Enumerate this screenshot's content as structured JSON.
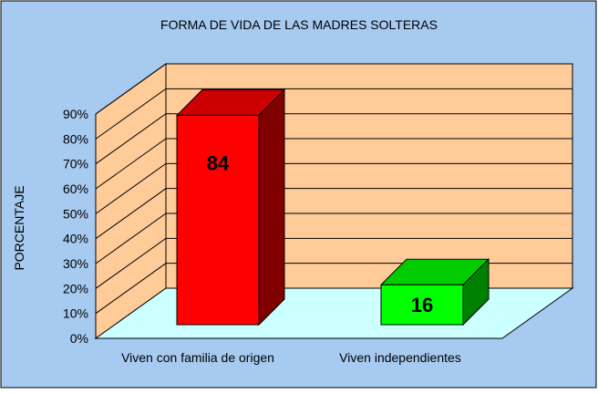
{
  "chart_data": {
    "type": "bar",
    "title": "FORMA DE VIDA DE LAS MADRES SOLTERAS",
    "xlabel": "",
    "ylabel": "PORCENTAJE",
    "categories": [
      "Viven con familia de origen",
      "Viven independientes"
    ],
    "values": [
      84,
      16
    ],
    "data_labels": [
      "84",
      "16"
    ],
    "y_ticks": [
      0,
      10,
      20,
      30,
      40,
      50,
      60,
      70,
      80,
      90
    ],
    "y_tick_labels": [
      "0%",
      "10%",
      "20%",
      "30%",
      "40%",
      "50%",
      "60%",
      "70%",
      "80%",
      "90%"
    ],
    "ylim": [
      0,
      90
    ],
    "grid": true,
    "legend": "none",
    "style": "3d-column",
    "colors": {
      "background": "#a6caf0",
      "wall": "#ffcc99",
      "floor": "#ccffff",
      "bars": [
        "#ff0000",
        "#00ff00"
      ],
      "bar_tops": [
        "#cc0000",
        "#00cc00"
      ],
      "bar_sides": [
        "#800000",
        "#008000"
      ]
    }
  }
}
